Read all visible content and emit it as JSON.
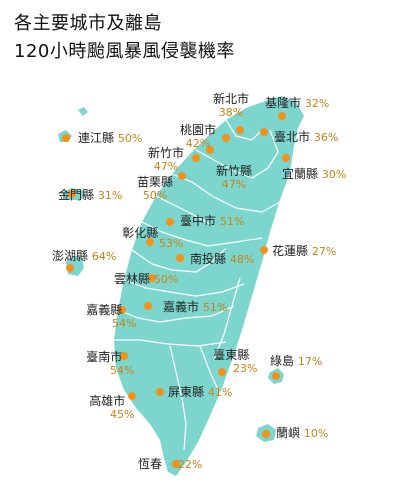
{
  "title_line1": "各主要城市及離島",
  "title_line2": "120小時颱風暴風侵襲機率",
  "colors": {
    "land": "#7dd6cd",
    "border": "#ffffff",
    "dot": "#f2911c",
    "percent": "#c78316"
  },
  "regions": [
    {
      "id": "keelung",
      "name": "基隆市",
      "prob": "32%"
    },
    {
      "id": "new-taipei",
      "name": "新北市",
      "prob": "38%"
    },
    {
      "id": "taoyuan",
      "name": "桃園市",
      "prob": "42%"
    },
    {
      "id": "taipei",
      "name": "臺北市",
      "prob": "36%"
    },
    {
      "id": "yilan",
      "name": "宜蘭縣",
      "prob": "30%"
    },
    {
      "id": "hsinchu-city",
      "name": "新竹市",
      "prob": "47%"
    },
    {
      "id": "hsinchu-county",
      "name": "新竹縣",
      "prob": "47%"
    },
    {
      "id": "miaoli",
      "name": "苗栗縣",
      "prob": "50%"
    },
    {
      "id": "taichung",
      "name": "臺中市",
      "prob": "51%"
    },
    {
      "id": "changhua",
      "name": "彰化縣",
      "prob": "53%"
    },
    {
      "id": "nantou",
      "name": "南投縣",
      "prob": "48%"
    },
    {
      "id": "hualien",
      "name": "花蓮縣",
      "prob": "27%"
    },
    {
      "id": "yunlin",
      "name": "雲林縣",
      "prob": "50%"
    },
    {
      "id": "chiayi-county",
      "name": "嘉義縣",
      "prob": "54%"
    },
    {
      "id": "chiayi-city",
      "name": "嘉義市",
      "prob": "51%"
    },
    {
      "id": "tainan",
      "name": "臺南市",
      "prob": "54%"
    },
    {
      "id": "taitung",
      "name": "臺東縣",
      "prob": "23%"
    },
    {
      "id": "kaohsiung",
      "name": "高雄市",
      "prob": "45%"
    },
    {
      "id": "pingtung",
      "name": "屏東縣",
      "prob": "41%"
    },
    {
      "id": "hengchun",
      "name": "恆春",
      "prob": "22%"
    },
    {
      "id": "lienchiang",
      "name": "連江縣",
      "prob": "50%"
    },
    {
      "id": "kinmen",
      "name": "金門縣",
      "prob": "31%"
    },
    {
      "id": "penghu",
      "name": "澎湖縣",
      "prob": "64%"
    },
    {
      "id": "green-island",
      "name": "綠島",
      "prob": "17%"
    },
    {
      "id": "orchid-island",
      "name": "蘭嶼",
      "prob": "10%"
    }
  ]
}
